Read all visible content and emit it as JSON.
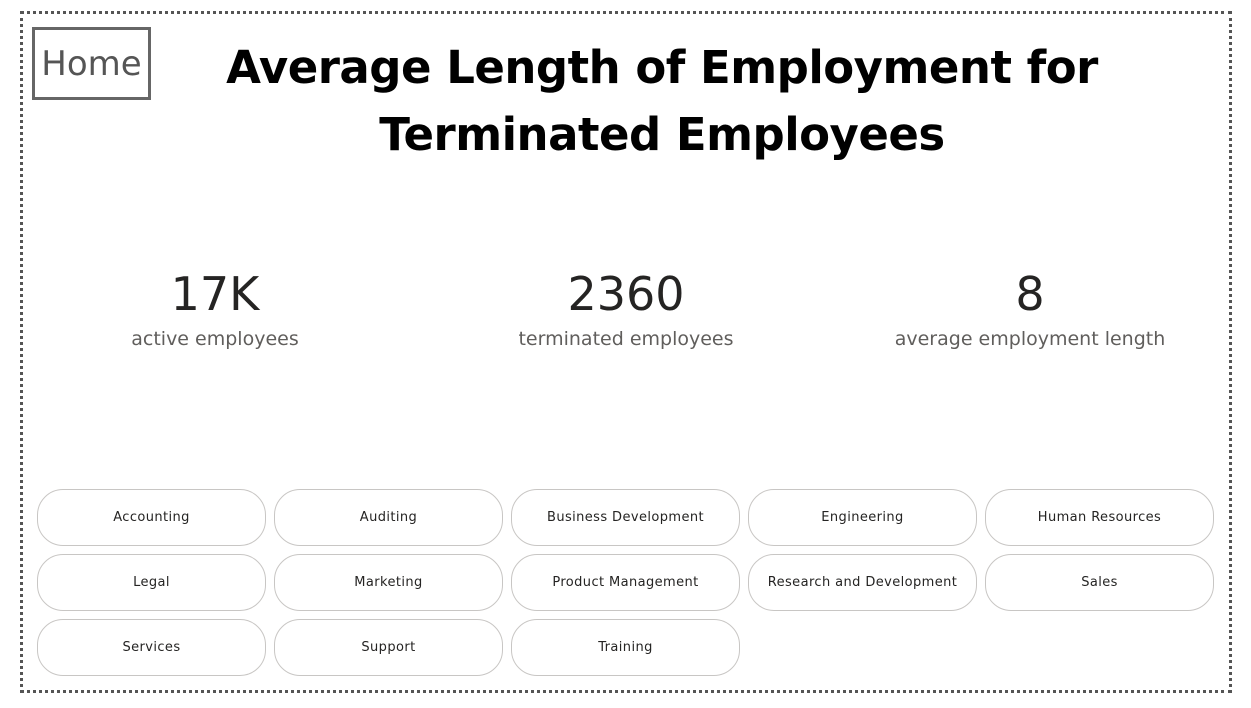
{
  "nav": {
    "home_label": "Home"
  },
  "header": {
    "title": "Average Length of Employment for Terminated Employees"
  },
  "kpis": [
    {
      "value": "17K",
      "label": "active employees"
    },
    {
      "value": "2360",
      "label": "terminated employees"
    },
    {
      "value": "8",
      "label": "average employment length"
    }
  ],
  "departments": [
    "Accounting",
    "Auditing",
    "Business Development",
    "Engineering",
    "Human Resources",
    "Legal",
    "Marketing",
    "Product Management",
    "Research and Development",
    "Sales",
    "Services",
    "Support",
    "Training"
  ]
}
